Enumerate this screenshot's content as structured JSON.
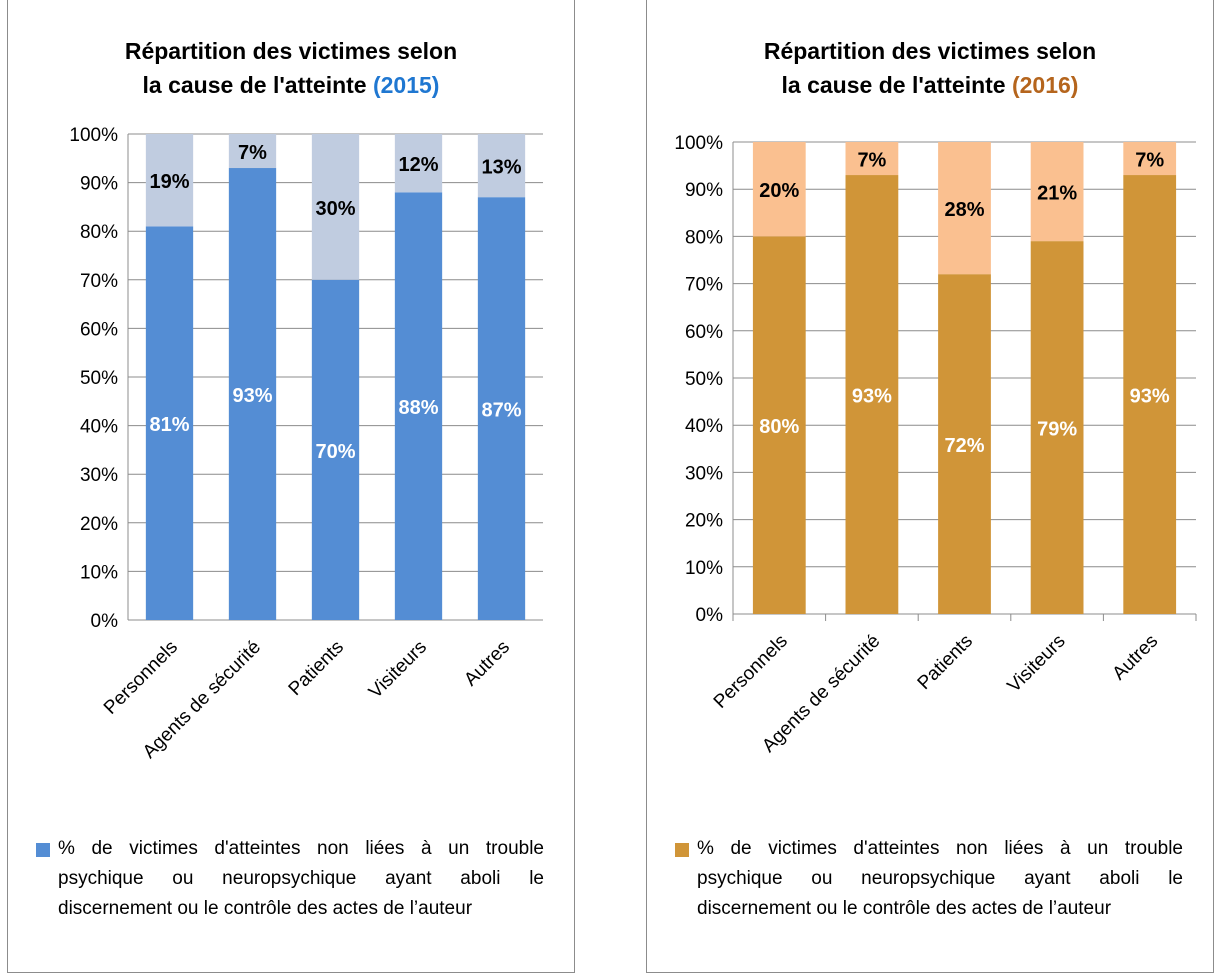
{
  "chart_data": [
    {
      "type": "bar",
      "stacked": true,
      "title": [
        "Répartition des victimes selon",
        "la cause de l'atteinte"
      ],
      "title_year": "(2015)",
      "year_color": "#1f77d1",
      "categories": [
        "Personnels",
        "Agents de sécurité",
        "Patients",
        "Visiteurs",
        "Autres"
      ],
      "series": [
        {
          "name": "% de victimes d'atteintes non liées à un trouble psychique ou neuropsychique ayant aboli le discernement ou le contrôle des actes de l’auteur",
          "values": [
            81,
            93,
            70,
            88,
            87
          ],
          "labels": [
            "81%",
            "93%",
            "70%",
            "88%",
            "87%"
          ],
          "color": "#548dd4"
        },
        {
          "values": [
            19,
            7,
            30,
            12,
            13
          ],
          "labels": [
            "19%",
            "7%",
            "30%",
            "12%",
            "13%"
          ],
          "color": "#c0cce0"
        }
      ],
      "y_ticks": [
        "0%",
        "10%",
        "20%",
        "30%",
        "40%",
        "50%",
        "60%",
        "70%",
        "80%",
        "90%",
        "100%"
      ],
      "ylim": [
        0,
        100
      ],
      "grid": true,
      "legend_position": "bottom"
    },
    {
      "type": "bar",
      "stacked": true,
      "title": [
        "Répartition des victimes selon",
        "la cause de l'atteinte"
      ],
      "title_year": "(2016)",
      "year_color": "#b5651d",
      "categories": [
        "Personnels",
        "Agents de sécurité",
        "Patients",
        "Visiteurs",
        "Autres"
      ],
      "series": [
        {
          "name": "% de victimes d'atteintes non liées à un trouble psychique ou neuropsychique ayant aboli le discernement ou le contrôle des actes de l’auteur",
          "values": [
            80,
            93,
            72,
            79,
            93
          ],
          "labels": [
            "80%",
            "93%",
            "72%",
            "79%",
            "93%"
          ],
          "color": "#d09538"
        },
        {
          "values": [
            20,
            7,
            28,
            21,
            7
          ],
          "labels": [
            "20%",
            "7%",
            "28%",
            "21%",
            "7%"
          ],
          "color": "#fac090"
        }
      ],
      "y_ticks": [
        "0%",
        "10%",
        "20%",
        "30%",
        "40%",
        "50%",
        "60%",
        "70%",
        "80%",
        "90%",
        "100%"
      ],
      "ylim": [
        0,
        100
      ],
      "grid": true,
      "legend_position": "bottom"
    }
  ]
}
